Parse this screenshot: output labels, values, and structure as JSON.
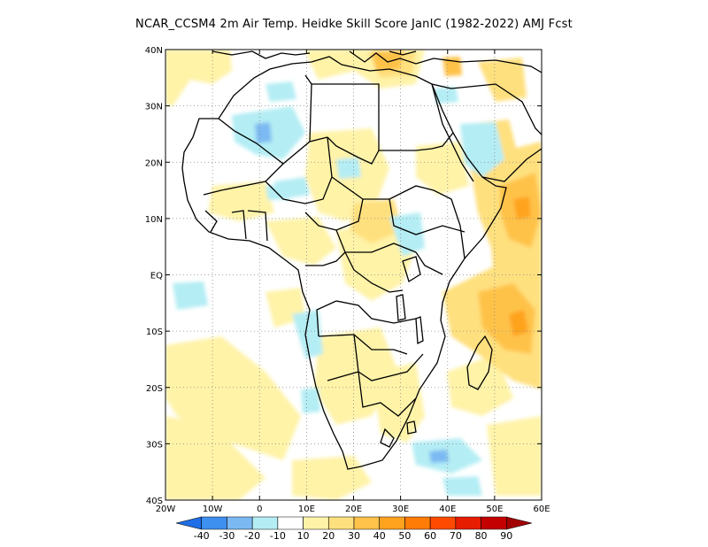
{
  "title": "NCAR_CCSM4  2m Air Temp. Heidke Skill Score JanIC (1982-2022) AMJ Fcst",
  "map": {
    "lon_range": [
      -20,
      60
    ],
    "lat_range": [
      -40,
      40
    ],
    "x_ticks": [
      "20W",
      "10W",
      "0",
      "10E",
      "20E",
      "30E",
      "40E",
      "50E",
      "60E"
    ],
    "y_ticks": [
      "40N",
      "30N",
      "20N",
      "10N",
      "EQ",
      "10S",
      "20S",
      "30S",
      "40S"
    ],
    "grid": "dotted"
  },
  "legend": {
    "levels": [
      "-40",
      "-30",
      "-20",
      "-10",
      "10",
      "20",
      "30",
      "40",
      "50",
      "60",
      "70",
      "80",
      "90"
    ],
    "colors": [
      "#1f6ee6",
      "#3d8ff0",
      "#7bb9f2",
      "#b4edf4",
      "#ffffff",
      "#fff3a8",
      "#ffe07e",
      "#ffc24a",
      "#ffa31e",
      "#ff7c06",
      "#ff4a00",
      "#e61d00",
      "#c40000",
      "#a20000"
    ]
  }
}
